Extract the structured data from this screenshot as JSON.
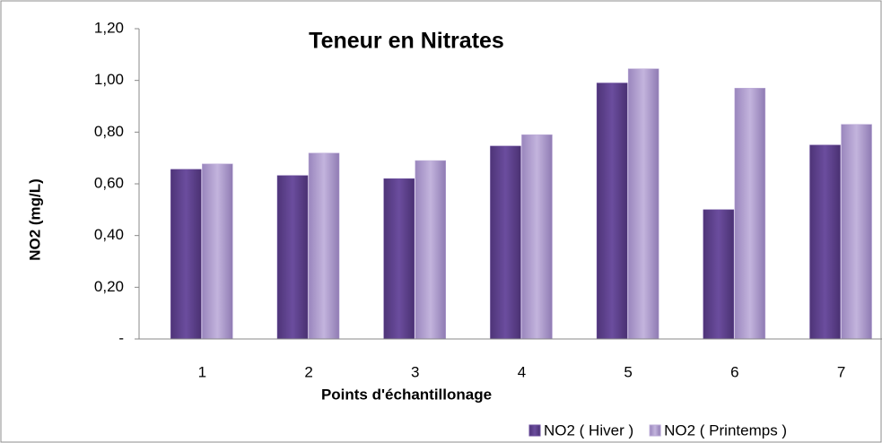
{
  "chart_data": {
    "type": "bar",
    "title": "Teneur en Nitrates",
    "x_label": "Points d'échantillonage",
    "y_label": "NO2 (mg/L)",
    "categories": [
      "1",
      "2",
      "3",
      "4",
      "5",
      "6",
      "7"
    ],
    "series": [
      {
        "name": "NO2 ( Hiver )",
        "color": "#6b4d9e",
        "values": [
          0.656,
          0.632,
          0.62,
          0.746,
          0.99,
          0.5,
          0.75
        ]
      },
      {
        "name": "NO2 ( Printemps )",
        "color": "#b9a8d6",
        "values": [
          0.677,
          0.719,
          0.69,
          0.79,
          1.045,
          0.97,
          0.83
        ]
      }
    ],
    "ylim": [
      0,
      1.2
    ],
    "yticks": [
      {
        "value": 0,
        "label": "-"
      },
      {
        "value": 0.2,
        "label": "0,20"
      },
      {
        "value": 0.4,
        "label": "0,40"
      },
      {
        "value": 0.6,
        "label": "0,60"
      },
      {
        "value": 0.8,
        "label": "0,80"
      },
      {
        "value": 1.0,
        "label": "1,00"
      },
      {
        "value": 1.2,
        "label": "1,20"
      }
    ],
    "legend": "bottom-right"
  }
}
